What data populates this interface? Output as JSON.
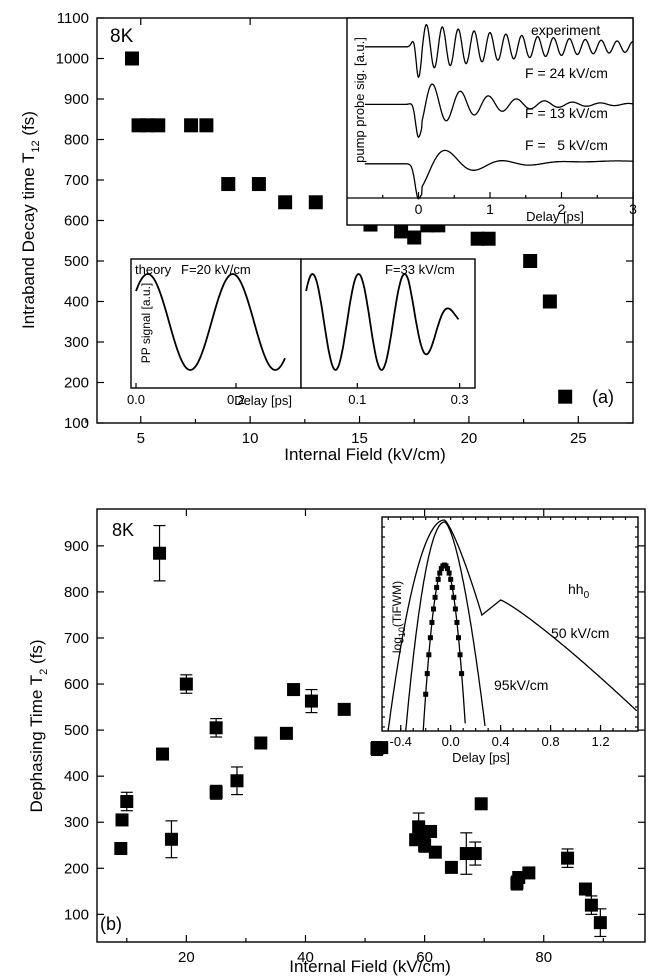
{
  "chart_data": [
    {
      "type": "scatter",
      "panel_label": "(a)",
      "temperature_label": "8K",
      "xlabel": "Internal Field (kV/cm)",
      "ylabel": "Intraband Decay time T",
      "ylabel_sub": "12",
      "ylabel_unit": " (fs)",
      "xlim": [
        3,
        27.5
      ],
      "ylim": [
        100,
        1100
      ],
      "xticks": [
        5,
        10,
        15,
        20,
        25
      ],
      "yticks": [
        100,
        200,
        300,
        400,
        500,
        600,
        700,
        800,
        900,
        1000,
        1100
      ],
      "series": [
        {
          "marker": "filled-square",
          "points": [
            {
              "x": 4.6,
              "y": 1000
            },
            {
              "x": 4.9,
              "y": 835
            },
            {
              "x": 5.3,
              "y": 835
            },
            {
              "x": 5.8,
              "y": 835
            },
            {
              "x": 7.3,
              "y": 835
            },
            {
              "x": 8.0,
              "y": 835
            },
            {
              "x": 9.0,
              "y": 690
            },
            {
              "x": 10.4,
              "y": 690
            },
            {
              "x": 11.6,
              "y": 645
            },
            {
              "x": 13.0,
              "y": 645
            },
            {
              "x": 14.8,
              "y": 625
            },
            {
              "x": 15.5,
              "y": 590
            },
            {
              "x": 16.9,
              "y": 573
            },
            {
              "x": 17.5,
              "y": 558
            },
            {
              "x": 18.1,
              "y": 588
            },
            {
              "x": 18.6,
              "y": 588
            },
            {
              "x": 20.4,
              "y": 555
            },
            {
              "x": 20.9,
              "y": 555
            },
            {
              "x": 22.8,
              "y": 500
            },
            {
              "x": 23.7,
              "y": 400
            },
            {
              "x": 24.4,
              "y": 165
            }
          ]
        }
      ],
      "insets": [
        {
          "title": "experiment",
          "xlabel": "Delay [ps]",
          "ylabel": "pump probe sig. [a.u.]",
          "xlim": [
            -1.0,
            3.0
          ],
          "xticks": [
            0,
            1,
            2,
            3
          ],
          "curves": [
            {
              "label": "F = 24 kV/cm",
              "offset": 0.84,
              "amp": 0.13,
              "freq": 4.5,
              "decay": 2.0
            },
            {
              "label": "F = 13 kV/cm",
              "offset": 0.52,
              "amp": 0.14,
              "freq": 2.55,
              "decay": 0.9
            },
            {
              "label": "F =   5 kV/cm",
              "offset": 0.19,
              "amp": 0.15,
              "freq": 1.25,
              "decay": 0.55
            }
          ]
        },
        {
          "title": "theory",
          "label": "F=20 kV/cm",
          "ylabel": "PP signal [a.u.]",
          "xlabel": "Delay [ps]",
          "xlim": [
            -0.01,
            0.33
          ],
          "xticks": [
            0.0,
            0.2
          ],
          "period": 0.17
        },
        {
          "label": "F=33 kV/cm",
          "xlim": [
            -0.01,
            0.33
          ],
          "xticks": [
            0.1,
            0.3
          ],
          "period": 0.09
        }
      ]
    },
    {
      "type": "scatter",
      "panel_label": "(b)",
      "temperature_label": "8K",
      "xlabel": "Internal Field (kV/cm)",
      "ylabel": "Dephasing Time T",
      "ylabel_sub": "2",
      "ylabel_unit": " (fs)",
      "xlim": [
        5,
        97
      ],
      "ylim": [
        40,
        980
      ],
      "xticks": [
        20,
        40,
        60,
        80
      ],
      "yticks": [
        100,
        200,
        300,
        400,
        500,
        600,
        700,
        800,
        900
      ],
      "series": [
        {
          "marker": "filled-square-with-errorbars",
          "points": [
            {
              "x": 9.0,
              "y": 243,
              "err": 0
            },
            {
              "x": 9.2,
              "y": 305,
              "err": 0
            },
            {
              "x": 10.0,
              "y": 345,
              "err": 20
            },
            {
              "x": 15.5,
              "y": 884,
              "err": 60
            },
            {
              "x": 16.0,
              "y": 448,
              "err": 0
            },
            {
              "x": 17.5,
              "y": 263,
              "err": 40
            },
            {
              "x": 20.0,
              "y": 600,
              "err": 20
            },
            {
              "x": 25.0,
              "y": 505,
              "err": 20
            },
            {
              "x": 25.0,
              "y": 365,
              "err": 15
            },
            {
              "x": 28.5,
              "y": 390,
              "err": 30
            },
            {
              "x": 32.5,
              "y": 472,
              "err": 0
            },
            {
              "x": 36.8,
              "y": 493,
              "err": 0
            },
            {
              "x": 38.0,
              "y": 588,
              "err": 0
            },
            {
              "x": 41.0,
              "y": 563,
              "err": 25
            },
            {
              "x": 46.5,
              "y": 545,
              "err": 0
            },
            {
              "x": 52.0,
              "y": 460,
              "err": 15
            },
            {
              "x": 52.8,
              "y": 462,
              "err": 0
            },
            {
              "x": 58.5,
              "y": 262,
              "err": 0
            },
            {
              "x": 59.0,
              "y": 290,
              "err": 30
            },
            {
              "x": 59.5,
              "y": 270,
              "err": 20
            },
            {
              "x": 60.0,
              "y": 250,
              "err": 15
            },
            {
              "x": 61.0,
              "y": 280,
              "err": 0
            },
            {
              "x": 61.8,
              "y": 235,
              "err": 0
            },
            {
              "x": 64.5,
              "y": 202,
              "err": 0
            },
            {
              "x": 67.0,
              "y": 232,
              "err": 45
            },
            {
              "x": 68.5,
              "y": 232,
              "err": 25
            },
            {
              "x": 69.5,
              "y": 340,
              "err": 0
            },
            {
              "x": 75.5,
              "y": 168,
              "err": 15
            },
            {
              "x": 75.8,
              "y": 180,
              "err": 0
            },
            {
              "x": 77.5,
              "y": 190,
              "err": 0
            },
            {
              "x": 84.0,
              "y": 222,
              "err": 20
            },
            {
              "x": 87.0,
              "y": 155,
              "err": 0
            },
            {
              "x": 88.0,
              "y": 120,
              "err": 20
            },
            {
              "x": 89.5,
              "y": 82,
              "err": 30
            }
          ]
        }
      ],
      "inset": {
        "xlabel": "Delay [ps]",
        "ylabel": "log",
        "ylabel_sub": "10",
        "ylabel_rest": "(TiFWM)",
        "xlim": [
          -0.55,
          1.5
        ],
        "xticks": [
          -0.4,
          0.0,
          0.4,
          0.8,
          1.2
        ],
        "hh_label": "hh",
        "hh_sub": "0",
        "curve_labels": [
          "50 kV/cm",
          "95kV/cm"
        ]
      }
    }
  ]
}
